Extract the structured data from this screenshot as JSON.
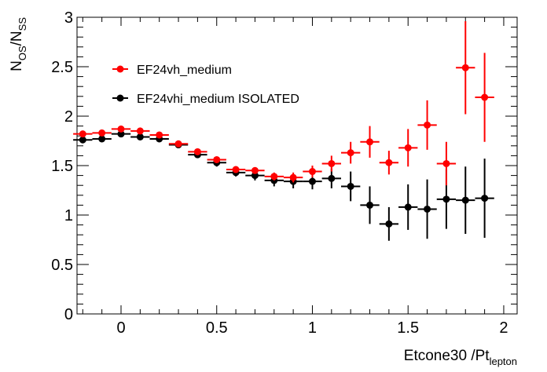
{
  "chart_data": {
    "type": "scatter",
    "title": "",
    "xlabel": "Etcone30 /Pt",
    "xlabel_sub": "lepton",
    "ylabel_main": "N",
    "ylabel_sub1": "OS",
    "ylabel_slash": "/N",
    "ylabel_sub2": "SS",
    "xlim": [
      -0.23,
      2.07
    ],
    "ylim": [
      0,
      3
    ],
    "grid": false,
    "legend_position": "upper-left",
    "x_ticks": [
      {
        "value": 0,
        "label": "0"
      },
      {
        "value": 0.5,
        "label": "0.5"
      },
      {
        "value": 1,
        "label": "1"
      },
      {
        "value": 1.5,
        "label": "1.5"
      },
      {
        "value": 2,
        "label": "2"
      }
    ],
    "y_ticks": [
      {
        "value": 0,
        "label": "0"
      },
      {
        "value": 0.5,
        "label": "0.5"
      },
      {
        "value": 1,
        "label": "1"
      },
      {
        "value": 1.5,
        "label": "1.5"
      },
      {
        "value": 2,
        "label": "2"
      },
      {
        "value": 2.5,
        "label": "2.5"
      },
      {
        "value": 3,
        "label": "3"
      }
    ],
    "bin_half_width": 0.05,
    "series": [
      {
        "name": "EF24vh_medium",
        "color": "#ff0000",
        "x": [
          -0.2,
          -0.1,
          0.0,
          0.1,
          0.2,
          0.3,
          0.4,
          0.5,
          0.6,
          0.7,
          0.8,
          0.9,
          1.0,
          1.1,
          1.2,
          1.3,
          1.4,
          1.5,
          1.6,
          1.7,
          1.8,
          1.9
        ],
        "y": [
          1.82,
          1.83,
          1.87,
          1.85,
          1.81,
          1.72,
          1.64,
          1.56,
          1.46,
          1.45,
          1.39,
          1.38,
          1.44,
          1.52,
          1.63,
          1.74,
          1.53,
          1.68,
          1.91,
          1.52,
          2.49,
          2.19
        ],
        "err": [
          0.03,
          0.03,
          0.03,
          0.03,
          0.03,
          0.03,
          0.03,
          0.03,
          0.03,
          0.03,
          0.04,
          0.05,
          0.06,
          0.08,
          0.11,
          0.16,
          0.12,
          0.19,
          0.25,
          0.22,
          0.47,
          0.45
        ]
      },
      {
        "name": "EF24vhi_medium  ISOLATED",
        "color": "#000000",
        "x": [
          -0.2,
          -0.1,
          0.0,
          0.1,
          0.2,
          0.3,
          0.4,
          0.5,
          0.6,
          0.7,
          0.8,
          0.9,
          1.0,
          1.1,
          1.2,
          1.3,
          1.4,
          1.5,
          1.6,
          1.7,
          1.8,
          1.9
        ],
        "y": [
          1.76,
          1.77,
          1.82,
          1.79,
          1.77,
          1.71,
          1.61,
          1.53,
          1.43,
          1.4,
          1.35,
          1.34,
          1.34,
          1.37,
          1.29,
          1.1,
          0.91,
          1.08,
          1.06,
          1.16,
          1.15,
          1.17
        ],
        "err": [
          0.03,
          0.03,
          0.03,
          0.03,
          0.03,
          0.03,
          0.03,
          0.04,
          0.04,
          0.05,
          0.06,
          0.07,
          0.08,
          0.1,
          0.15,
          0.19,
          0.17,
          0.23,
          0.3,
          0.3,
          0.34,
          0.4
        ]
      }
    ]
  }
}
